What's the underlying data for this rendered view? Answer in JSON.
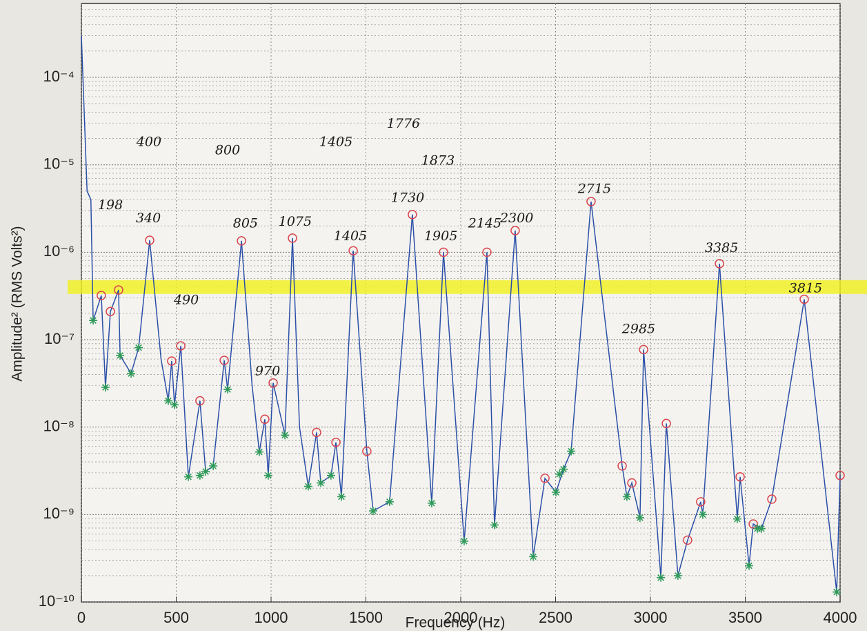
{
  "chart_data": {
    "type": "line",
    "x_label": "Frequency (Hz)",
    "y_label": "Amplitude² (RMS Volts²)",
    "xlim": [
      0,
      4000
    ],
    "ylim": [
      1e-10,
      0.0007
    ],
    "y_log": true,
    "grid": true,
    "xticks": [
      0,
      500,
      1000,
      1500,
      2000,
      2500,
      3000,
      3500,
      4000
    ],
    "yticks": [
      {
        "value": 1e-10,
        "label": "10⁻¹⁰"
      },
      {
        "value": 1e-09,
        "label": "10⁻⁹"
      },
      {
        "value": 1e-08,
        "label": "10⁻⁸"
      },
      {
        "value": 1e-07,
        "label": "10⁻⁷"
      },
      {
        "value": 1e-06,
        "label": "10⁻⁶"
      },
      {
        "value": 1e-05,
        "label": "10⁻⁵"
      },
      {
        "value": 0.0001,
        "label": "10⁻⁴"
      }
    ],
    "highlight": {
      "value": 4e-07,
      "color": "#f2f21c"
    },
    "series": [
      {
        "mode": "line",
        "color": "#2b4fa8",
        "x": [
          0,
          30,
          50,
          62,
          105,
          127,
          153,
          196,
          204,
          262,
          302,
          360,
          420,
          458,
          476,
          491,
          524,
          564,
          625,
          655,
          695,
          753,
          771,
          844,
          900,
          938,
          967,
          985,
          1011,
          1073,
          1113,
          1150,
          1196,
          1240,
          1262,
          1316,
          1342,
          1371,
          1433,
          1505,
          1538,
          1625,
          1745,
          1847,
          1909,
          2018,
          2138,
          2178,
          2287,
          2382,
          2444,
          2502,
          2542,
          2582,
          2687,
          2851,
          2876,
          2902,
          2945,
          2964,
          3055,
          3084,
          3145,
          3196,
          3265,
          3276,
          3364,
          3458,
          3473,
          3520,
          3542,
          3585,
          3640,
          3811,
          3982,
          4000
        ],
        "values": [
          0.0003,
          5e-06,
          4e-06,
          1.66e-07,
          3.2e-07,
          2.85e-08,
          2.1e-07,
          3.7e-07,
          6.6e-08,
          4.1e-08,
          8.1e-08,
          1.37e-06,
          6e-08,
          2e-08,
          5.7e-08,
          1.8e-08,
          8.5e-08,
          2.7e-09,
          2e-08,
          3.1e-09,
          3.6e-09,
          5.8e-08,
          2.7e-08,
          1.35e-06,
          3e-08,
          5.2e-09,
          1.23e-08,
          2.8e-09,
          3.2e-08,
          8.1e-09,
          1.45e-06,
          1e-08,
          2.1e-09,
          8.7e-09,
          2.3e-09,
          2.8e-09,
          6.7e-09,
          1.6e-09,
          1.04e-06,
          5.3e-09,
          1.1e-09,
          1.4e-09,
          2.7e-06,
          1.35e-09,
          1e-06,
          4.96e-10,
          1e-06,
          7.6e-10,
          1.77e-06,
          3.3e-10,
          2.6e-09,
          1.8e-09,
          3.3e-09,
          5.3e-09,
          3.8e-06,
          3.6e-09,
          1.6e-09,
          2.3e-09,
          9.2e-10,
          7.7e-08,
          1.9e-10,
          1.1e-08,
          2e-10,
          5.1e-10,
          1.4e-09,
          1e-09,
          7.4e-07,
          8.9e-10,
          2.7e-09,
          2.6e-10,
          7.8e-10,
          6.9e-10,
          1.5e-09,
          2.9e-07,
          1.3e-10,
          2.8e-09
        ]
      },
      {
        "mode": "markers",
        "marker": "circle",
        "color": "#d9454f",
        "x": [
          105,
          153,
          196,
          360,
          476,
          524,
          625,
          753,
          844,
          967,
          1011,
          1113,
          1240,
          1342,
          1433,
          1505,
          1745,
          1909,
          2138,
          2287,
          2444,
          2687,
          2851,
          2902,
          2964,
          3084,
          3196,
          3265,
          3364,
          3473,
          3542,
          3640,
          3811,
          4000
        ],
        "values": [
          3.2e-07,
          2.1e-07,
          3.7e-07,
          1.37e-06,
          5.7e-08,
          8.5e-08,
          2e-08,
          5.8e-08,
          1.35e-06,
          1.23e-08,
          3.2e-08,
          1.45e-06,
          8.7e-09,
          6.7e-09,
          1.04e-06,
          5.3e-09,
          2.7e-06,
          1e-06,
          1e-06,
          1.77e-06,
          2.6e-09,
          3.8e-06,
          3.6e-09,
          2.3e-09,
          7.7e-08,
          1.1e-08,
          5.1e-10,
          1.4e-09,
          7.4e-07,
          2.7e-09,
          7.8e-10,
          1.5e-09,
          2.9e-07,
          2.8e-09
        ]
      },
      {
        "mode": "markers",
        "marker": "star",
        "color": "#2f9a5a",
        "x": [
          62,
          127,
          204,
          262,
          302,
          458,
          491,
          564,
          625,
          655,
          695,
          771,
          938,
          985,
          1073,
          1196,
          1262,
          1316,
          1371,
          1538,
          1625,
          1847,
          2018,
          2178,
          2382,
          2502,
          2520,
          2542,
          2582,
          2876,
          2945,
          3055,
          3145,
          3276,
          3458,
          3520,
          3564,
          3585,
          3982
        ],
        "values": [
          1.66e-07,
          2.85e-08,
          6.6e-08,
          4.1e-08,
          8.1e-08,
          2e-08,
          1.8e-08,
          2.7e-09,
          2.8e-09,
          3.1e-09,
          3.6e-09,
          2.7e-08,
          5.2e-09,
          2.8e-09,
          8.1e-09,
          2.1e-09,
          2.3e-09,
          2.8e-09,
          1.6e-09,
          1.1e-09,
          1.4e-09,
          1.35e-09,
          4.96e-10,
          7.6e-10,
          3.3e-10,
          1.8e-09,
          2.9e-09,
          3.3e-09,
          5.3e-09,
          1.6e-09,
          9.2e-10,
          1.9e-10,
          2e-10,
          1e-09,
          8.9e-10,
          2.6e-10,
          6.9e-10,
          6.9e-10,
          1.3e-10
        ]
      }
    ],
    "annotations": [
      {
        "text": "198",
        "x": 153,
        "y": 3.4e-06
      },
      {
        "text": "400",
        "x": 356,
        "y": 1.8e-05
      },
      {
        "text": "340",
        "x": 353,
        "y": 2.4e-06
      },
      {
        "text": "490",
        "x": 553,
        "y": 2.8e-07
      },
      {
        "text": "800",
        "x": 771,
        "y": 1.45e-05
      },
      {
        "text": "805",
        "x": 865,
        "y": 2.1e-06
      },
      {
        "text": "970",
        "x": 982,
        "y": 4.3e-08
      },
      {
        "text": "1075",
        "x": 1127,
        "y": 2.2e-06
      },
      {
        "text": "1405",
        "x": 1342,
        "y": 1.8e-05
      },
      {
        "text": "1405",
        "x": 1418,
        "y": 1.5e-06
      },
      {
        "text": "1776",
        "x": 1698,
        "y": 2.9e-05
      },
      {
        "text": "1730",
        "x": 1720,
        "y": 4.1e-06
      },
      {
        "text": "1873",
        "x": 1880,
        "y": 1.1e-05
      },
      {
        "text": "1905",
        "x": 1895,
        "y": 1.5e-06
      },
      {
        "text": "2145",
        "x": 2127,
        "y": 2.1e-06
      },
      {
        "text": "2300",
        "x": 2295,
        "y": 2.4e-06
      },
      {
        "text": "2715",
        "x": 2705,
        "y": 5.2e-06
      },
      {
        "text": "2985",
        "x": 2938,
        "y": 1.3e-07
      },
      {
        "text": "3385",
        "x": 3375,
        "y": 1.1e-06
      },
      {
        "text": "3815",
        "x": 3818,
        "y": 3.8e-07
      }
    ]
  }
}
